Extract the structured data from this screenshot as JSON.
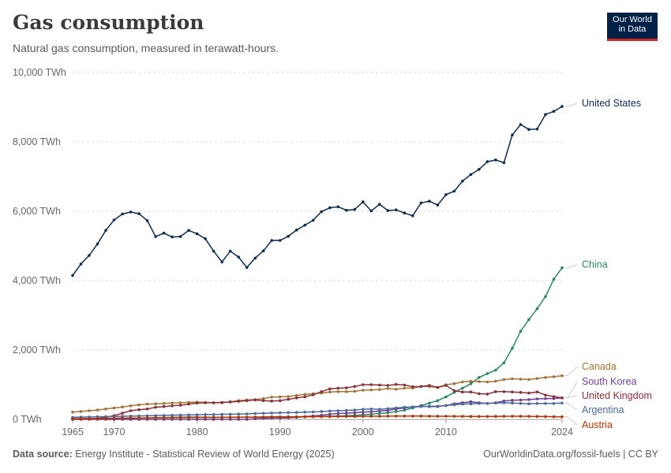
{
  "header": {
    "title": "Gas consumption",
    "subtitle": "Natural gas consumption, measured in terawatt-hours.",
    "logo_line1": "Our World",
    "logo_line2": "in Data"
  },
  "footer": {
    "source_label": "Data source:",
    "source_text": "Energy Institute - Statistical Review of World Energy (2025)",
    "url_text": "OurWorldinData.org/fossil-fuels | CC BY"
  },
  "chart_data": {
    "type": "line",
    "title": "Gas consumption",
    "subtitle": "Natural gas consumption, measured in terawatt-hours.",
    "ylim": [
      0,
      10000
    ],
    "y_ticks": [
      {
        "value": 0,
        "label": "0 TWh"
      },
      {
        "value": 2000,
        "label": "2,000 TWh"
      },
      {
        "value": 4000,
        "label": "4,000 TWh"
      },
      {
        "value": 6000,
        "label": "6,000 TWh"
      },
      {
        "value": 8000,
        "label": "8,000 TWh"
      },
      {
        "value": 10000,
        "label": "10,000 TWh"
      }
    ],
    "x_ticks": [
      1965,
      1970,
      1980,
      1990,
      2000,
      2010,
      2024
    ],
    "xlim": [
      1965,
      2024
    ],
    "grid": "horizontal dashed",
    "legend": "labels at line ends (right)",
    "colors": {
      "United States": "#0f2b4e",
      "China": "#2b8465",
      "Canada": "#a2743a",
      "South Korea": "#6d3e91",
      "United Kingdom": "#883039",
      "Argentina": "#4c6a9c",
      "Austria": "#b13507"
    },
    "series": [
      {
        "name": "United States",
        "start_year": 1965,
        "values": [
          4150,
          4480,
          4730,
          5060,
          5450,
          5750,
          5920,
          5980,
          5930,
          5730,
          5270,
          5370,
          5260,
          5270,
          5450,
          5350,
          5210,
          4850,
          4540,
          4850,
          4680,
          4380,
          4650,
          4860,
          5160,
          5160,
          5280,
          5460,
          5600,
          5740,
          5990,
          6100,
          6130,
          6030,
          6050,
          6270,
          6010,
          6200,
          6020,
          6040,
          5950,
          5870,
          6240,
          6290,
          6180,
          6480,
          6580,
          6870,
          7060,
          7210,
          7430,
          7480,
          7400,
          8200,
          8500,
          8360,
          8370,
          8790,
          8880,
          9020
        ]
      },
      {
        "name": "China",
        "start_year": 1965,
        "values": [
          10,
          11,
          13,
          14,
          17,
          20,
          24,
          30,
          35,
          40,
          48,
          55,
          60,
          64,
          68,
          65,
          62,
          62,
          63,
          64,
          65,
          65,
          67,
          70,
          72,
          73,
          75,
          77,
          80,
          82,
          86,
          90,
          95,
          105,
          115,
          135,
          150,
          170,
          190,
          225,
          265,
          330,
          400,
          470,
          540,
          650,
          780,
          900,
          1030,
          1210,
          1320,
          1420,
          1630,
          2050,
          2540,
          2880,
          3190,
          3540,
          4040,
          4370
        ]
      },
      {
        "name": "Canada",
        "start_year": 1965,
        "values": [
          210,
          230,
          250,
          270,
          300,
          330,
          360,
          390,
          420,
          440,
          450,
          460,
          470,
          480,
          490,
          500,
          490,
          480,
          480,
          510,
          540,
          560,
          570,
          600,
          640,
          650,
          660,
          690,
          720,
          740,
          760,
          790,
          800,
          800,
          810,
          840,
          850,
          860,
          890,
          870,
          900,
          900,
          950,
          950,
          920,
          1000,
          1030,
          1080,
          1100,
          1090,
          1080,
          1100,
          1150,
          1170,
          1160,
          1150,
          1180,
          1210,
          1230,
          1260
        ]
      },
      {
        "name": "South Korea",
        "start_year": 1965,
        "values": [
          0,
          0,
          0,
          0,
          0,
          0,
          0,
          0,
          0,
          0,
          0,
          0,
          0,
          0,
          0,
          0,
          0,
          0,
          0,
          0,
          0,
          0,
          15,
          30,
          35,
          40,
          45,
          60,
          80,
          100,
          120,
          150,
          170,
          180,
          190,
          210,
          220,
          240,
          260,
          300,
          330,
          360,
          380,
          370,
          370,
          400,
          450,
          480,
          510,
          480,
          460,
          480,
          530,
          550,
          560,
          570,
          590,
          600,
          600,
          620
        ]
      },
      {
        "name": "United Kingdom",
        "start_year": 1965,
        "values": [
          10,
          12,
          15,
          25,
          60,
          110,
          180,
          250,
          280,
          300,
          350,
          370,
          390,
          410,
          440,
          470,
          480,
          480,
          490,
          500,
          520,
          540,
          560,
          540,
          530,
          540,
          580,
          620,
          650,
          710,
          800,
          880,
          900,
          910,
          950,
          1000,
          1000,
          990,
          980,
          1010,
          990,
          940,
          950,
          980,
          920,
          980,
          830,
          790,
          790,
          740,
          730,
          800,
          800,
          790,
          780,
          760,
          790,
          700,
          660,
          620
        ]
      },
      {
        "name": "Argentina",
        "start_year": 1965,
        "values": [
          60,
          65,
          70,
          75,
          80,
          85,
          90,
          95,
          100,
          105,
          110,
          115,
          120,
          125,
          130,
          135,
          140,
          140,
          145,
          150,
          155,
          160,
          170,
          175,
          185,
          190,
          195,
          200,
          210,
          215,
          225,
          240,
          250,
          260,
          270,
          290,
          300,
          290,
          310,
          330,
          350,
          360,
          370,
          380,
          380,
          400,
          420,
          440,
          450,
          460,
          460,
          470,
          480,
          470,
          460,
          450,
          460,
          460,
          460,
          470
        ]
      },
      {
        "name": "Austria",
        "start_year": 1965,
        "values": [
          20,
          22,
          24,
          26,
          30,
          35,
          38,
          40,
          42,
          44,
          45,
          46,
          48,
          50,
          52,
          54,
          55,
          55,
          56,
          58,
          60,
          62,
          63,
          65,
          68,
          70,
          72,
          74,
          76,
          78,
          80,
          82,
          84,
          86,
          87,
          88,
          90,
          92,
          94,
          95,
          96,
          96,
          95,
          94,
          92,
          92,
          90,
          88,
          86,
          84,
          84,
          86,
          88,
          90,
          90,
          88,
          86,
          82,
          78,
          74
        ]
      }
    ]
  }
}
